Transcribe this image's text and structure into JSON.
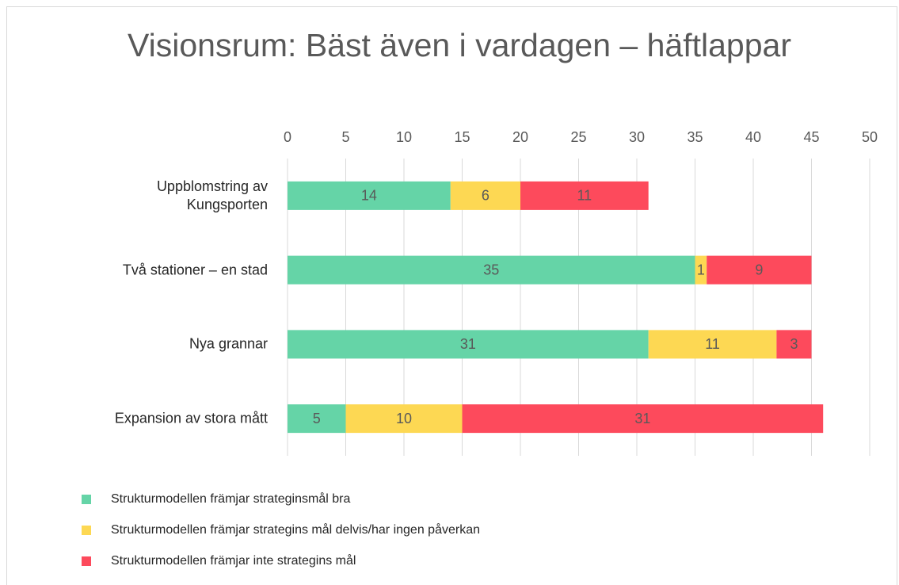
{
  "chart_data": {
    "type": "stacked_bar_horizontal",
    "title": "Visionsrum: Bäst även i vardagen – häftlappar",
    "categories": [
      "Uppblomstring av Kungsporten",
      "Två stationer – en stad",
      "Nya grannar",
      "Expansion av stora mått"
    ],
    "series": [
      {
        "name": "Strukturmodellen främjar strateginsmål bra",
        "color": "#65d4a7",
        "values": [
          14,
          35,
          31,
          5
        ]
      },
      {
        "name": "Strukturmodellen främjar strategins mål delvis/har ingen påverkan",
        "color": "#fdd853",
        "values": [
          6,
          1,
          11,
          10
        ]
      },
      {
        "name": "Strukturmodellen främjar inte strategins mål",
        "color": "#fd4a5c",
        "values": [
          11,
          9,
          3,
          31
        ]
      }
    ],
    "xlim": [
      0,
      50
    ],
    "xticks": [
      0,
      5,
      10,
      15,
      20,
      25,
      30,
      35,
      40,
      45,
      50
    ],
    "grid": true,
    "legend": "bottom-left"
  }
}
